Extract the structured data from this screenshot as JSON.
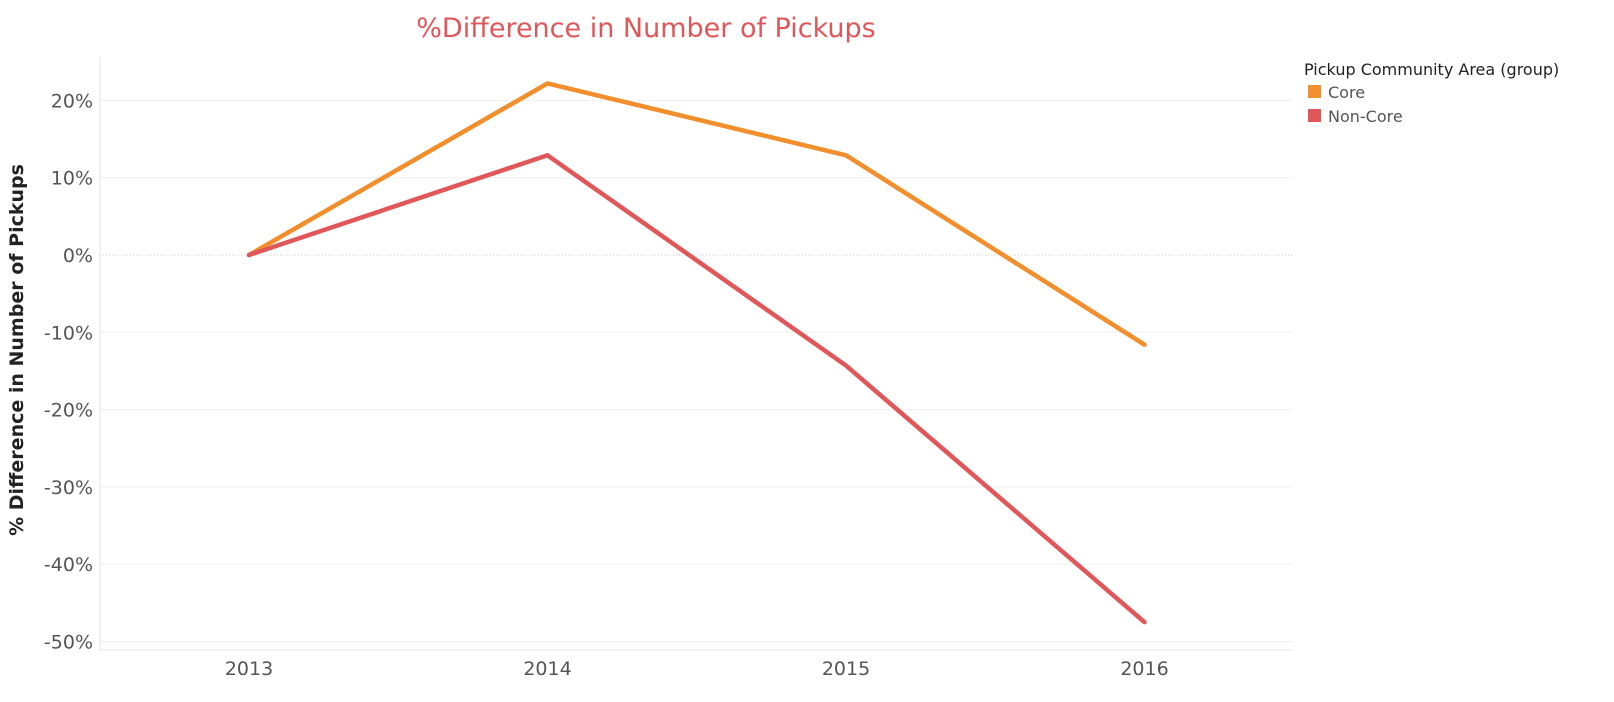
{
  "chart_data": {
    "type": "line",
    "title": "%Difference in Number of Pickups",
    "xlabel": "",
    "ylabel": "% Difference in Number of Pickups",
    "categories": [
      "2013",
      "2014",
      "2015",
      "2016"
    ],
    "y_ticks": [
      20,
      10,
      0,
      -10,
      -20,
      -30,
      -40,
      -50
    ],
    "y_tick_labels": [
      "20%",
      "10%",
      "0%",
      "-10%",
      "-20%",
      "-30%",
      "-40%",
      "-50%"
    ],
    "ylim": [
      -50,
      22
    ],
    "grid": true,
    "zero_line": true,
    "legend": {
      "title": "Pickup Community Area (group)",
      "placement": "top-right",
      "items": [
        {
          "label": "Core",
          "color": "#f28e2b"
        },
        {
          "label": "Non-Core",
          "color": "#e15759"
        }
      ]
    },
    "series": [
      {
        "name": "Core",
        "color": "#f28e2b",
        "values": [
          0,
          22.2,
          12.9,
          -11.6
        ]
      },
      {
        "name": "Non-Core",
        "color": "#e15759",
        "values": [
          0,
          12.9,
          -14.3,
          -47.5
        ]
      }
    ]
  }
}
